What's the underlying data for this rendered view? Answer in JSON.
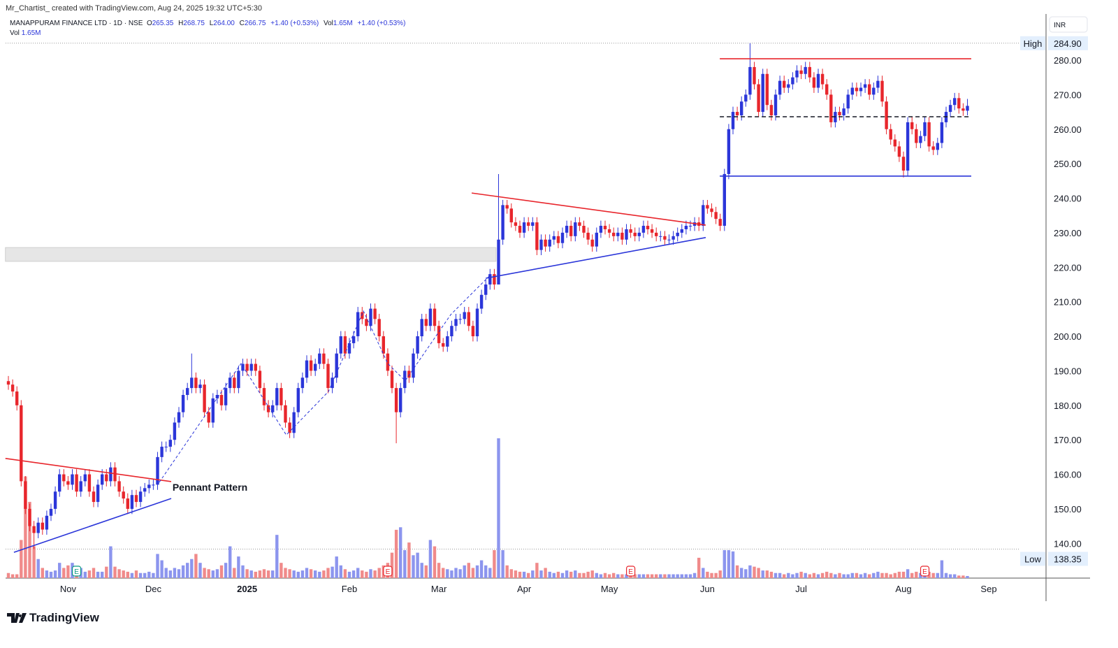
{
  "credit": "Mr_Chartist_ created with TradingView.com, Aug 24, 2025 19:32 UTC+5:30",
  "legend": {
    "symbol": "MANAPPURAM FINANCE LTD · 1D · NSE",
    "o_label": "O",
    "o": "265.35",
    "h_label": "H",
    "h": "268.75",
    "l_label": "L",
    "l": "264.00",
    "c_label": "C",
    "c": "266.75",
    "change": "+1.40 (+0.53%)",
    "vol_label": "Vol",
    "vol": "1.65M",
    "vol_change": "+1.40 (+0.53%)",
    "vol2_label": "Vol",
    "vol2": "1.65M"
  },
  "logo": "TradingView",
  "colors": {
    "up": "#2b36d9",
    "down": "#e8262c",
    "vol_up": "#8c95ee",
    "vol_down": "#f08a8a",
    "accent_label": "#e3effd"
  },
  "chart_data": {
    "type": "candlestick",
    "currency": "INR",
    "ylim": [
      130,
      290
    ],
    "y_ticks": [
      "140.00",
      "150.00",
      "160.00",
      "170.00",
      "180.00",
      "190.00",
      "200.00",
      "210.00",
      "220.00",
      "230.00",
      "240.00",
      "250.00",
      "260.00",
      "270.00",
      "280.00"
    ],
    "y_tick_values": [
      140,
      150,
      160,
      170,
      180,
      190,
      200,
      210,
      220,
      230,
      240,
      250,
      260,
      270,
      280
    ],
    "high": {
      "label": "High",
      "value": "284.90"
    },
    "low": {
      "label": "Low",
      "value": "138.35"
    },
    "x_ticks": [
      {
        "label": "Nov",
        "index": 14
      },
      {
        "label": "Dec",
        "index": 34
      },
      {
        "label": "2025",
        "index": 56
      },
      {
        "label": "Feb",
        "index": 80
      },
      {
        "label": "Mar",
        "index": 101
      },
      {
        "label": "Apr",
        "index": 121
      },
      {
        "label": "May",
        "index": 141
      },
      {
        "label": "Jun",
        "index": 164
      },
      {
        "label": "Jul",
        "index": 186
      },
      {
        "label": "Aug",
        "index": 210
      },
      {
        "label": "Sep",
        "index": 230
      }
    ],
    "first_open": 187,
    "close": [
      186,
      184,
      180,
      158,
      150,
      145,
      143,
      146,
      144,
      148,
      150,
      155,
      160,
      158,
      157,
      160,
      155,
      158,
      160,
      155,
      152,
      157,
      160,
      158,
      162,
      158,
      155,
      153,
      150,
      154,
      152,
      155,
      156,
      157,
      157,
      165,
      168,
      168,
      170,
      175,
      178,
      183,
      185,
      188,
      185,
      186,
      178,
      175,
      182,
      183,
      180,
      185,
      188,
      185,
      190,
      192,
      190,
      192,
      190,
      185,
      180,
      178,
      180,
      185,
      180,
      175,
      172,
      178,
      185,
      188,
      193,
      190,
      192,
      195,
      192,
      185,
      188,
      195,
      200,
      195,
      198,
      200,
      207,
      205,
      203,
      208,
      205,
      200,
      195,
      190,
      185,
      178,
      185,
      190,
      188,
      195,
      200,
      205,
      203,
      208,
      203,
      198,
      197,
      200,
      203,
      205,
      205,
      207,
      203,
      200,
      208,
      212,
      215,
      218,
      215,
      228,
      238,
      237,
      233,
      232,
      230,
      233,
      232,
      233,
      225,
      228,
      226,
      228,
      229,
      227,
      230,
      232,
      229,
      233,
      232,
      230,
      228,
      226,
      230,
      232,
      231,
      230,
      229,
      230,
      228,
      231,
      230,
      229,
      230,
      232,
      231,
      230,
      229,
      229,
      228,
      228,
      229,
      230,
      231,
      232,
      232,
      233,
      232,
      238,
      237,
      236,
      234,
      232,
      247,
      260,
      265,
      264,
      268,
      270,
      278,
      273,
      265,
      276,
      267,
      264,
      270,
      274,
      272,
      273,
      275,
      277,
      276,
      278,
      275,
      272,
      276,
      273,
      270,
      262,
      265,
      264,
      266,
      270,
      272,
      271,
      272,
      273,
      270,
      272,
      274,
      268,
      260,
      257,
      255,
      252,
      248,
      262,
      260,
      256,
      258,
      262,
      255,
      254,
      256,
      262,
      265,
      267,
      269,
      266,
      265.35,
      266.75
    ],
    "wicks": [
      {
        "index": 6,
        "low": 138.35
      },
      {
        "index": 43,
        "high": 195
      },
      {
        "index": 91,
        "low": 169
      },
      {
        "index": 115,
        "high": 247,
        "low": 220
      },
      {
        "index": 174,
        "high": 284.9
      },
      {
        "index": 210,
        "low": 246
      },
      {
        "index": 225,
        "high": 268.75,
        "low": 264.0
      }
    ],
    "volume_unit": "M",
    "volume": [
      4,
      3,
      3,
      30,
      80,
      60,
      25,
      15,
      8,
      6,
      5,
      6,
      12,
      8,
      10,
      12,
      6,
      8,
      5,
      6,
      8,
      5,
      5,
      9,
      25,
      9,
      7,
      6,
      5,
      4,
      6,
      4,
      4,
      5,
      4,
      19,
      14,
      8,
      6,
      8,
      7,
      10,
      12,
      15,
      19,
      12,
      8,
      7,
      6,
      7,
      10,
      12,
      25,
      8,
      17,
      10,
      7,
      6,
      5,
      6,
      7,
      6,
      6,
      34,
      12,
      8,
      7,
      6,
      5,
      6,
      8,
      7,
      6,
      5,
      6,
      8,
      9,
      17,
      10,
      7,
      5,
      6,
      8,
      6,
      5,
      7,
      6,
      8,
      10,
      12,
      20,
      38,
      40,
      22,
      28,
      18,
      20,
      12,
      10,
      30,
      25,
      12,
      8,
      7,
      6,
      8,
      7,
      10,
      12,
      8,
      10,
      14,
      10,
      8,
      22,
      110,
      22,
      10,
      7,
      6,
      5,
      5,
      4,
      6,
      12,
      6,
      8,
      5,
      4,
      5,
      4,
      6,
      5,
      6,
      4,
      4,
      5,
      6,
      4,
      3,
      4,
      3,
      4,
      3,
      3,
      3,
      4,
      3,
      3,
      3,
      3,
      3,
      3,
      3,
      3,
      3,
      3,
      3,
      3,
      3,
      3,
      4,
      16,
      8,
      5,
      4,
      4,
      6,
      22,
      22,
      21,
      10,
      8,
      7,
      10,
      9,
      8,
      6,
      6,
      5,
      4,
      4,
      3,
      4,
      3,
      4,
      5,
      4,
      3,
      4,
      3,
      4,
      5,
      4,
      3,
      4,
      3,
      3,
      4,
      4,
      3,
      4,
      3,
      4,
      5,
      4,
      4,
      3,
      4,
      5,
      5,
      7,
      4,
      5,
      4,
      4,
      5,
      4,
      4,
      14,
      4,
      3,
      3,
      2,
      2,
      1.65
    ],
    "event_markers": [
      {
        "index": 16,
        "label": "E",
        "kind": "dividend"
      },
      {
        "index": 89,
        "label": "E",
        "kind": "earnings"
      },
      {
        "index": 146,
        "label": "E",
        "kind": "earnings"
      },
      {
        "index": 215,
        "label": "E",
        "kind": "earnings"
      }
    ],
    "drawings": {
      "pennant_label": "Pennant Pattern",
      "pennant_label_at": [
        38.5,
        155.3
      ],
      "pennant_top": [
        [
          -0.7,
          164.6
        ],
        [
          38.2,
          157.9
        ]
      ],
      "pennant_bottom": [
        [
          1.3,
          137.4
        ],
        [
          38.2,
          153.0
        ]
      ],
      "swing_path": [
        [
          35.4,
          157.7
        ],
        [
          47.2,
          178.9
        ],
        [
          54.6,
          192.1
        ],
        [
          65.2,
          171.4
        ],
        [
          75.1,
          184.0
        ],
        [
          83.3,
          207.3
        ],
        [
          89.0,
          192.1
        ],
        [
          93.1,
          187.1
        ],
        [
          103.8,
          206.3
        ],
        [
          112.8,
          217.4
        ]
      ],
      "support_zone": {
        "from_index": -0.7,
        "to_index": 114.4,
        "low": 221.7,
        "high": 225.7
      },
      "triangle_top": [
        [
          108.7,
          241.5
        ],
        [
          163.6,
          232.2
        ]
      ],
      "triangle_bottom": [
        [
          112,
          216.8
        ],
        [
          163.6,
          228.6
        ]
      ],
      "range_top": [
        [
          166.9,
          280.4
        ],
        [
          225.9,
          280.4
        ]
      ],
      "range_mid": [
        [
          166.9,
          263.6
        ],
        [
          225.9,
          263.6
        ]
      ],
      "range_bottom": [
        [
          166.9,
          246.4
        ],
        [
          225.9,
          246.4
        ]
      ]
    }
  }
}
